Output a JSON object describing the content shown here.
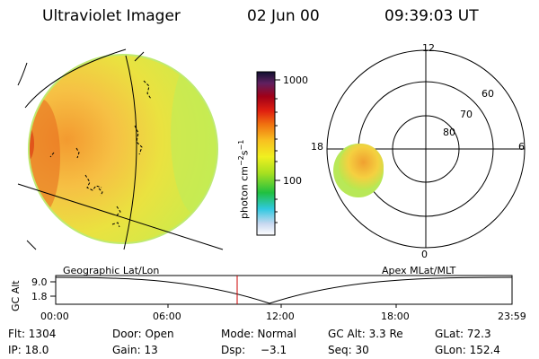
{
  "header": {
    "title": "Ultraviolet Imager",
    "date": "02 Jun 00",
    "time": "09:39:03 UT"
  },
  "colorbar": {
    "ticks": [
      "1000",
      "100"
    ],
    "unit_label": "photon cm",
    "unit_exp1": "−2",
    "unit_mid": "s",
    "unit_exp2": "−1",
    "scale": "log"
  },
  "polar_plot": {
    "mlt_labels": {
      "top": "12",
      "left": "18",
      "right": "6",
      "bottom": "0"
    },
    "lat_labels": [
      "60",
      "70",
      "80"
    ]
  },
  "altitude_panel": {
    "ylabel": "GC Alt",
    "yticks": [
      "9.0",
      "1.8"
    ],
    "left_label": "Geographic Lat/Lon",
    "right_label": "Apex MLat/MLT",
    "xticks": [
      "00:00",
      "06:00",
      "12:00",
      "18:00",
      "23:59"
    ]
  },
  "status": {
    "flt": "Flt: 1304",
    "ip": "IP: 18.0",
    "door": "Door: Open",
    "gain": "Gain: 13",
    "mode": "Mode: Normal",
    "dsp_label": "Dsp:",
    "dsp_value": "−3.1",
    "gcalt": "GC Alt: 3.3 Re",
    "seq": "Seq: 30",
    "glat": "GLat: 72.3",
    "glon": "GLon: 152.4"
  },
  "colors": {
    "background": "#ffffff",
    "marker": "#cc0000"
  }
}
